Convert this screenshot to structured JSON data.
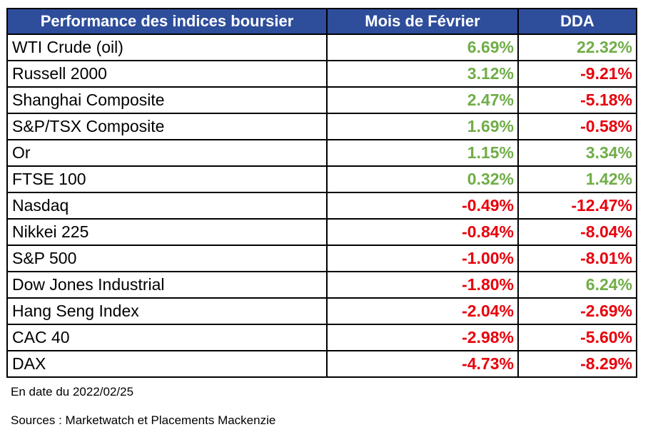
{
  "table": {
    "headers": [
      "Performance des indices boursier",
      "Mois de Février",
      "DDA"
    ],
    "rows": [
      {
        "name": "WTI Crude (oil)",
        "month": "6.69%",
        "ytd": "22.32%"
      },
      {
        "name": "Russell 2000",
        "month": "3.12%",
        "ytd": "-9.21%"
      },
      {
        "name": "Shanghai Composite",
        "month": "2.47%",
        "ytd": "-5.18%"
      },
      {
        "name": "S&P/TSX Composite",
        "month": "1.69%",
        "ytd": "-0.58%"
      },
      {
        "name": "Or",
        "month": "1.15%",
        "ytd": "3.34%"
      },
      {
        "name": "FTSE 100",
        "month": "0.32%",
        "ytd": "1.42%"
      },
      {
        "name": "Nasdaq",
        "month": "-0.49%",
        "ytd": "-12.47%"
      },
      {
        "name": "Nikkei 225",
        "month": "-0.84%",
        "ytd": "-8.04%"
      },
      {
        "name": "S&P 500",
        "month": "-1.00%",
        "ytd": "-8.01%"
      },
      {
        "name": "Dow Jones Industrial",
        "month": "-1.80%",
        "ytd": "6.24%"
      },
      {
        "name": "Hang Seng Index",
        "month": "-2.04%",
        "ytd": "-2.69%"
      },
      {
        "name": "CAC 40",
        "month": "-2.98%",
        "ytd": "-5.60%"
      },
      {
        "name": "DAX",
        "month": "-4.73%",
        "ytd": "-8.29%"
      }
    ]
  },
  "notes": {
    "date": "En date du 2022/02/25",
    "sources": "Sources : Marketwatch et Placements Mackenzie"
  },
  "colors": {
    "header_bg": "#2E4D9B",
    "positive": "#70AD47",
    "negative": "#E8000B"
  }
}
